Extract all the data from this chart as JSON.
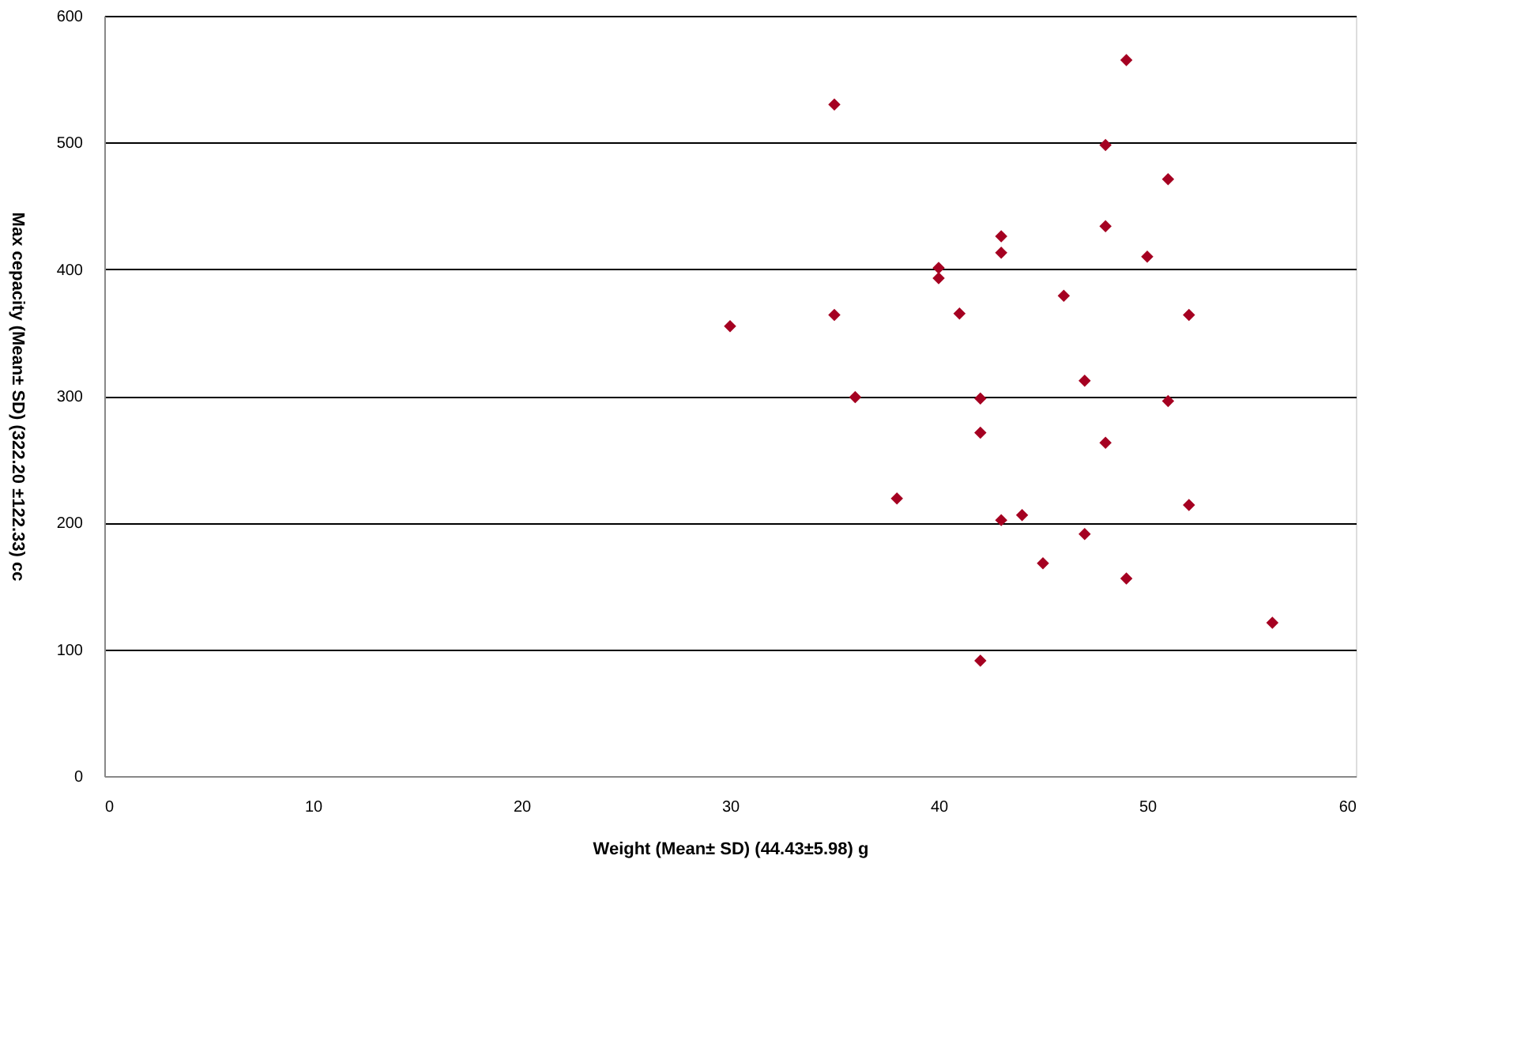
{
  "chart_data": {
    "type": "scatter",
    "xlabel": "Weight (Mean± SD) (44.43±5.98) g",
    "ylabel": "Max cepacity (Mean± SD) (322.20 ±122.33) cc",
    "x": [
      30,
      35,
      35,
      36,
      38,
      40,
      40,
      41,
      42,
      42,
      42,
      43,
      43,
      43,
      44,
      45,
      46,
      47,
      47,
      48,
      48,
      48,
      49,
      49,
      50,
      51,
      51,
      52,
      52,
      56
    ],
    "series": [
      {
        "color": "#a50021",
        "values": [
          355,
          530,
          364,
          299,
          219,
          401,
          393,
          365,
          298,
          271,
          91,
          426,
          413,
          202,
          206,
          168,
          379,
          312,
          191,
          498,
          434,
          263,
          565,
          156,
          410,
          471,
          296,
          364,
          214,
          121
        ]
      }
    ],
    "xlim": [
      0,
      60
    ],
    "ylim": [
      0,
      600
    ],
    "xticks": [
      0,
      10,
      20,
      30,
      40,
      50,
      60
    ],
    "yticks": [
      0,
      100,
      200,
      300,
      400,
      500,
      600
    ],
    "grid": "y",
    "marker": "diamond",
    "legend": false
  }
}
